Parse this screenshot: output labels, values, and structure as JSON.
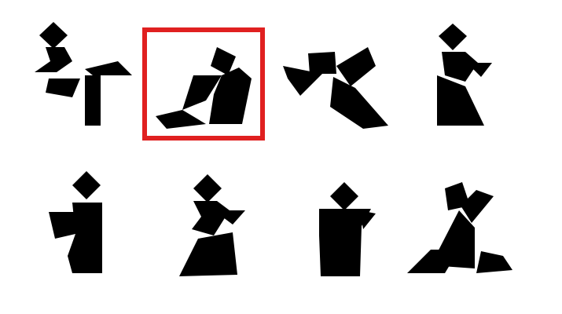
{
  "puzzle": {
    "selected_index": 1,
    "figure_color": "#000000",
    "highlight_color": "#E02020",
    "background_color": "#FFFFFF",
    "figures": [
      {
        "id": "kicking-figure"
      },
      {
        "id": "sitting-figure"
      },
      {
        "id": "diving-figure"
      },
      {
        "id": "kneeling-figure"
      },
      {
        "id": "standing-figure-1"
      },
      {
        "id": "crouching-figure"
      },
      {
        "id": "standing-figure-2"
      },
      {
        "id": "lunging-figure"
      }
    ]
  }
}
